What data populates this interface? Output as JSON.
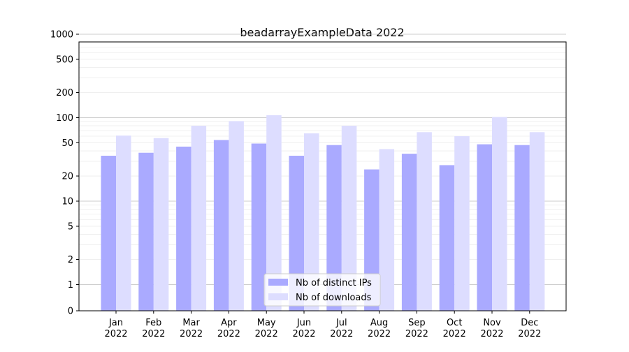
{
  "chart_data": {
    "type": "bar",
    "title": "beadarrayExampleData 2022",
    "xlabel": "",
    "ylabel": "",
    "y_scale": "symlog",
    "y_ticks": [
      0,
      1,
      2,
      5,
      10,
      20,
      50,
      100,
      200,
      500,
      1000
    ],
    "y_tick_labels": [
      "0",
      "1",
      "2",
      "5",
      "10",
      "20",
      "50",
      "100",
      "200",
      "500",
      "1000"
    ],
    "categories": [
      "Jan\n2022",
      "Feb\n2022",
      "Mar\n2022",
      "Apr\n2022",
      "May\n2022",
      "Jun\n2022",
      "Jul\n2022",
      "Aug\n2022",
      "Sep\n2022",
      "Oct\n2022",
      "Nov\n2022",
      "Dec\n2022"
    ],
    "series": [
      {
        "name": "Nb of distinct IPs",
        "color": "#aaaaff",
        "values": [
          35,
          38,
          45,
          54,
          49,
          35,
          47,
          24,
          37,
          27,
          48,
          47
        ]
      },
      {
        "name": "Nb of downloads",
        "color": "#ddddff",
        "values": [
          61,
          57,
          80,
          91,
          107,
          65,
          80,
          42,
          67,
          60,
          102,
          67
        ]
      }
    ],
    "legend": {
      "placement": "bottom-center",
      "entries": [
        "Nb of distinct IPs",
        "Nb of downloads"
      ]
    },
    "grid": true
  }
}
